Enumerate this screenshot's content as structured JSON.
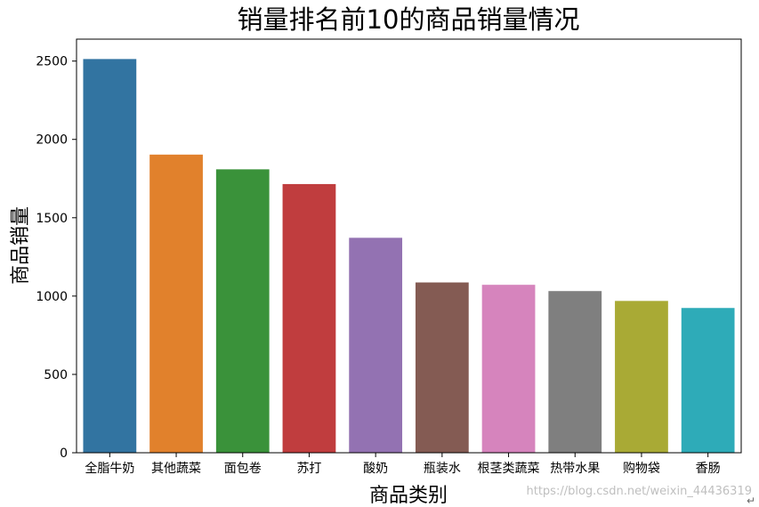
{
  "chart_data": {
    "type": "bar",
    "title": "销量排名前10的商品销量情况",
    "xlabel": "商品类别",
    "ylabel": "商品销量",
    "categories": [
      "全脂牛奶",
      "其他蔬菜",
      "面包卷",
      "苏打",
      "酸奶",
      "瓶装水",
      "根茎类蔬菜",
      "热带水果",
      "购物袋",
      "香肠"
    ],
    "values": [
      2513,
      1903,
      1809,
      1715,
      1372,
      1087,
      1072,
      1032,
      969,
      924
    ],
    "colors": [
      "#3274a1",
      "#e1812c",
      "#3a923a",
      "#c03d3e",
      "#9372b2",
      "#845b53",
      "#d684bd",
      "#7f7f7f",
      "#a9aa35",
      "#2eabb8"
    ],
    "ylim": [
      0,
      2640
    ],
    "yticks": [
      0,
      500,
      1000,
      1500,
      2000,
      2500
    ],
    "grid": false
  },
  "watermark": "https://blog.csdn.net/weixin_44436319",
  "corner_mark": "↵"
}
